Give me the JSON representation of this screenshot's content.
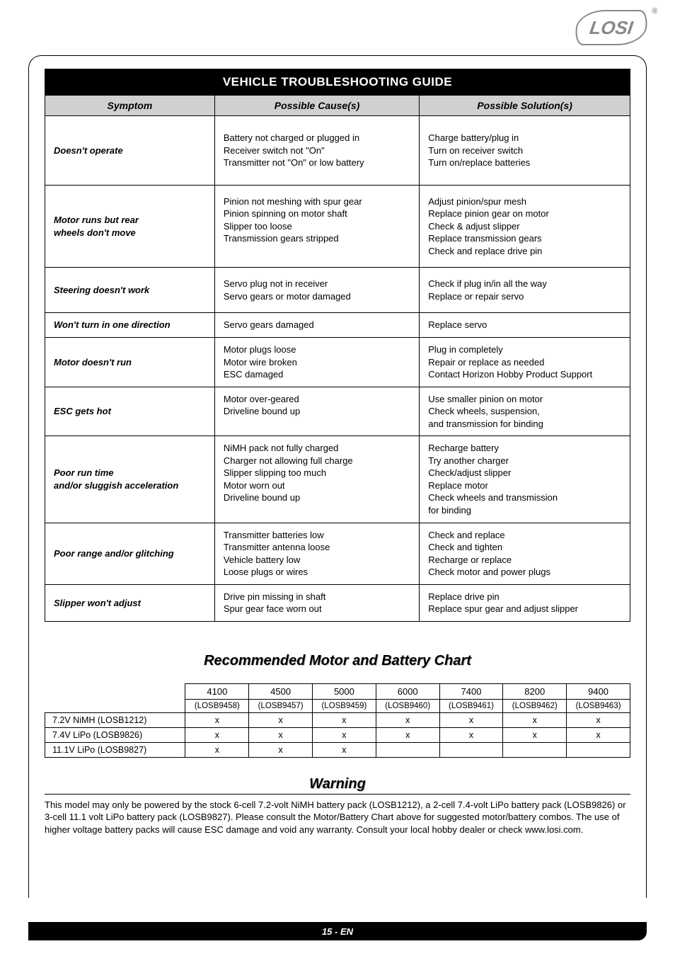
{
  "logo_text": "LOSI",
  "troubleshoot": {
    "title": "VEHICLE TROUBLESHOOTING GUIDE",
    "headers": {
      "symptom": "Symptom",
      "cause": "Possible Cause(s)",
      "solution": "Possible Solution(s)"
    },
    "rows": [
      {
        "symptom": "Doesn't operate",
        "cause": "Battery not charged or plugged in\nReceiver switch not \"On\"\nTransmitter not \"On\" or low battery",
        "solution": "Charge battery/plug in\nTurn on receiver switch\nTurn on/replace batteries",
        "cls": "tall"
      },
      {
        "symptom": "Motor runs but rear\nwheels don't move",
        "cause": "Pinion not meshing with spur gear\nPinion spinning on motor shaft\nSlipper too loose\nTransmission gears stripped",
        "solution": "Adjust pinion/spur mesh\nReplace pinion gear on motor\nCheck & adjust slipper\nReplace transmission gears\nCheck and replace drive pin",
        "cls": "med"
      },
      {
        "symptom": "Steering doesn't work",
        "cause": "Servo plug not in receiver\nServo gears or motor damaged",
        "solution": "Check if plug in/in all the way\nReplace or repair servo",
        "cls": "med"
      },
      {
        "symptom": "Won't turn in one direction",
        "cause": "Servo gears damaged",
        "solution": "Replace servo",
        "cls": ""
      },
      {
        "symptom": "Motor doesn't run",
        "cause": "Motor plugs loose\nMotor wire broken\nESC damaged",
        "solution": "Plug in completely\nRepair or replace as needed\nContact Horizon Hobby Product Support",
        "cls": ""
      },
      {
        "symptom": "ESC gets hot",
        "cause": "Motor over-geared\nDriveline bound up",
        "solution": "Use smaller pinion on motor\nCheck wheels, suspension,\n  and transmission for binding",
        "cls": ""
      },
      {
        "symptom": "Poor run time\nand/or sluggish acceleration",
        "cause": "NiMH pack not fully charged\nCharger not allowing full charge\nSlipper slipping too much\nMotor worn out\nDriveline bound up",
        "solution": "Recharge battery\nTry another charger\nCheck/adjust slipper\nReplace motor\nCheck wheels and transmission\nfor binding",
        "cls": ""
      },
      {
        "symptom": "Poor range and/or glitching",
        "cause": "Transmitter batteries low\nTransmitter antenna loose\nVehicle battery low\nLoose plugs or wires",
        "solution": "Check and replace\nCheck and tighten\nRecharge or replace\nCheck motor and power plugs",
        "cls": ""
      },
      {
        "symptom": "Slipper won't adjust",
        "cause": "Drive pin missing in shaft\nSpur gear face worn out",
        "solution": "Replace drive pin\nReplace spur gear and adjust slipper",
        "cls": ""
      }
    ]
  },
  "motor_chart": {
    "title": "Recommended Motor and Battery Chart",
    "kv": [
      "4100",
      "4500",
      "5000",
      "6000",
      "7400",
      "8200",
      "9400"
    ],
    "parts": [
      "(LOSB9458)",
      "(LOSB9457)",
      "(LOSB9459)",
      "(LOSB9460)",
      "(LOSB9461)",
      "(LOSB9462)",
      "(LOSB9463)"
    ],
    "rows": [
      {
        "label": "7.2V NiMH (LOSB1212)",
        "cells": [
          "x",
          "x",
          "x",
          "x",
          "x",
          "x",
          "x"
        ]
      },
      {
        "label": "7.4V LiPo (LOSB9826)",
        "cells": [
          "x",
          "x",
          "x",
          "x",
          "x",
          "x",
          "x"
        ]
      },
      {
        "label": "11.1V LiPo (LOSB9827)",
        "cells": [
          "x",
          "x",
          "x",
          "",
          "",
          "",
          ""
        ]
      }
    ]
  },
  "warning": {
    "title": "Warning",
    "text": "This model may only be powered by the stock 6-cell 7.2-volt NiMH battery pack (LOSB1212), a 2-cell 7.4-volt LiPo battery pack (LOSB9826) or 3-cell 11.1 volt LiPo battery pack (LOSB9827). Please consult the Motor/Battery Chart above for suggested motor/battery combos. The use of higher voltage battery packs will cause ESC damage and void any warranty. Consult your local hobby dealer or check www.losi.com."
  },
  "footer": "15 - EN",
  "colors": {
    "black": "#000000",
    "header_gray": "#d0d0d0",
    "logo_gray": "#888888"
  }
}
